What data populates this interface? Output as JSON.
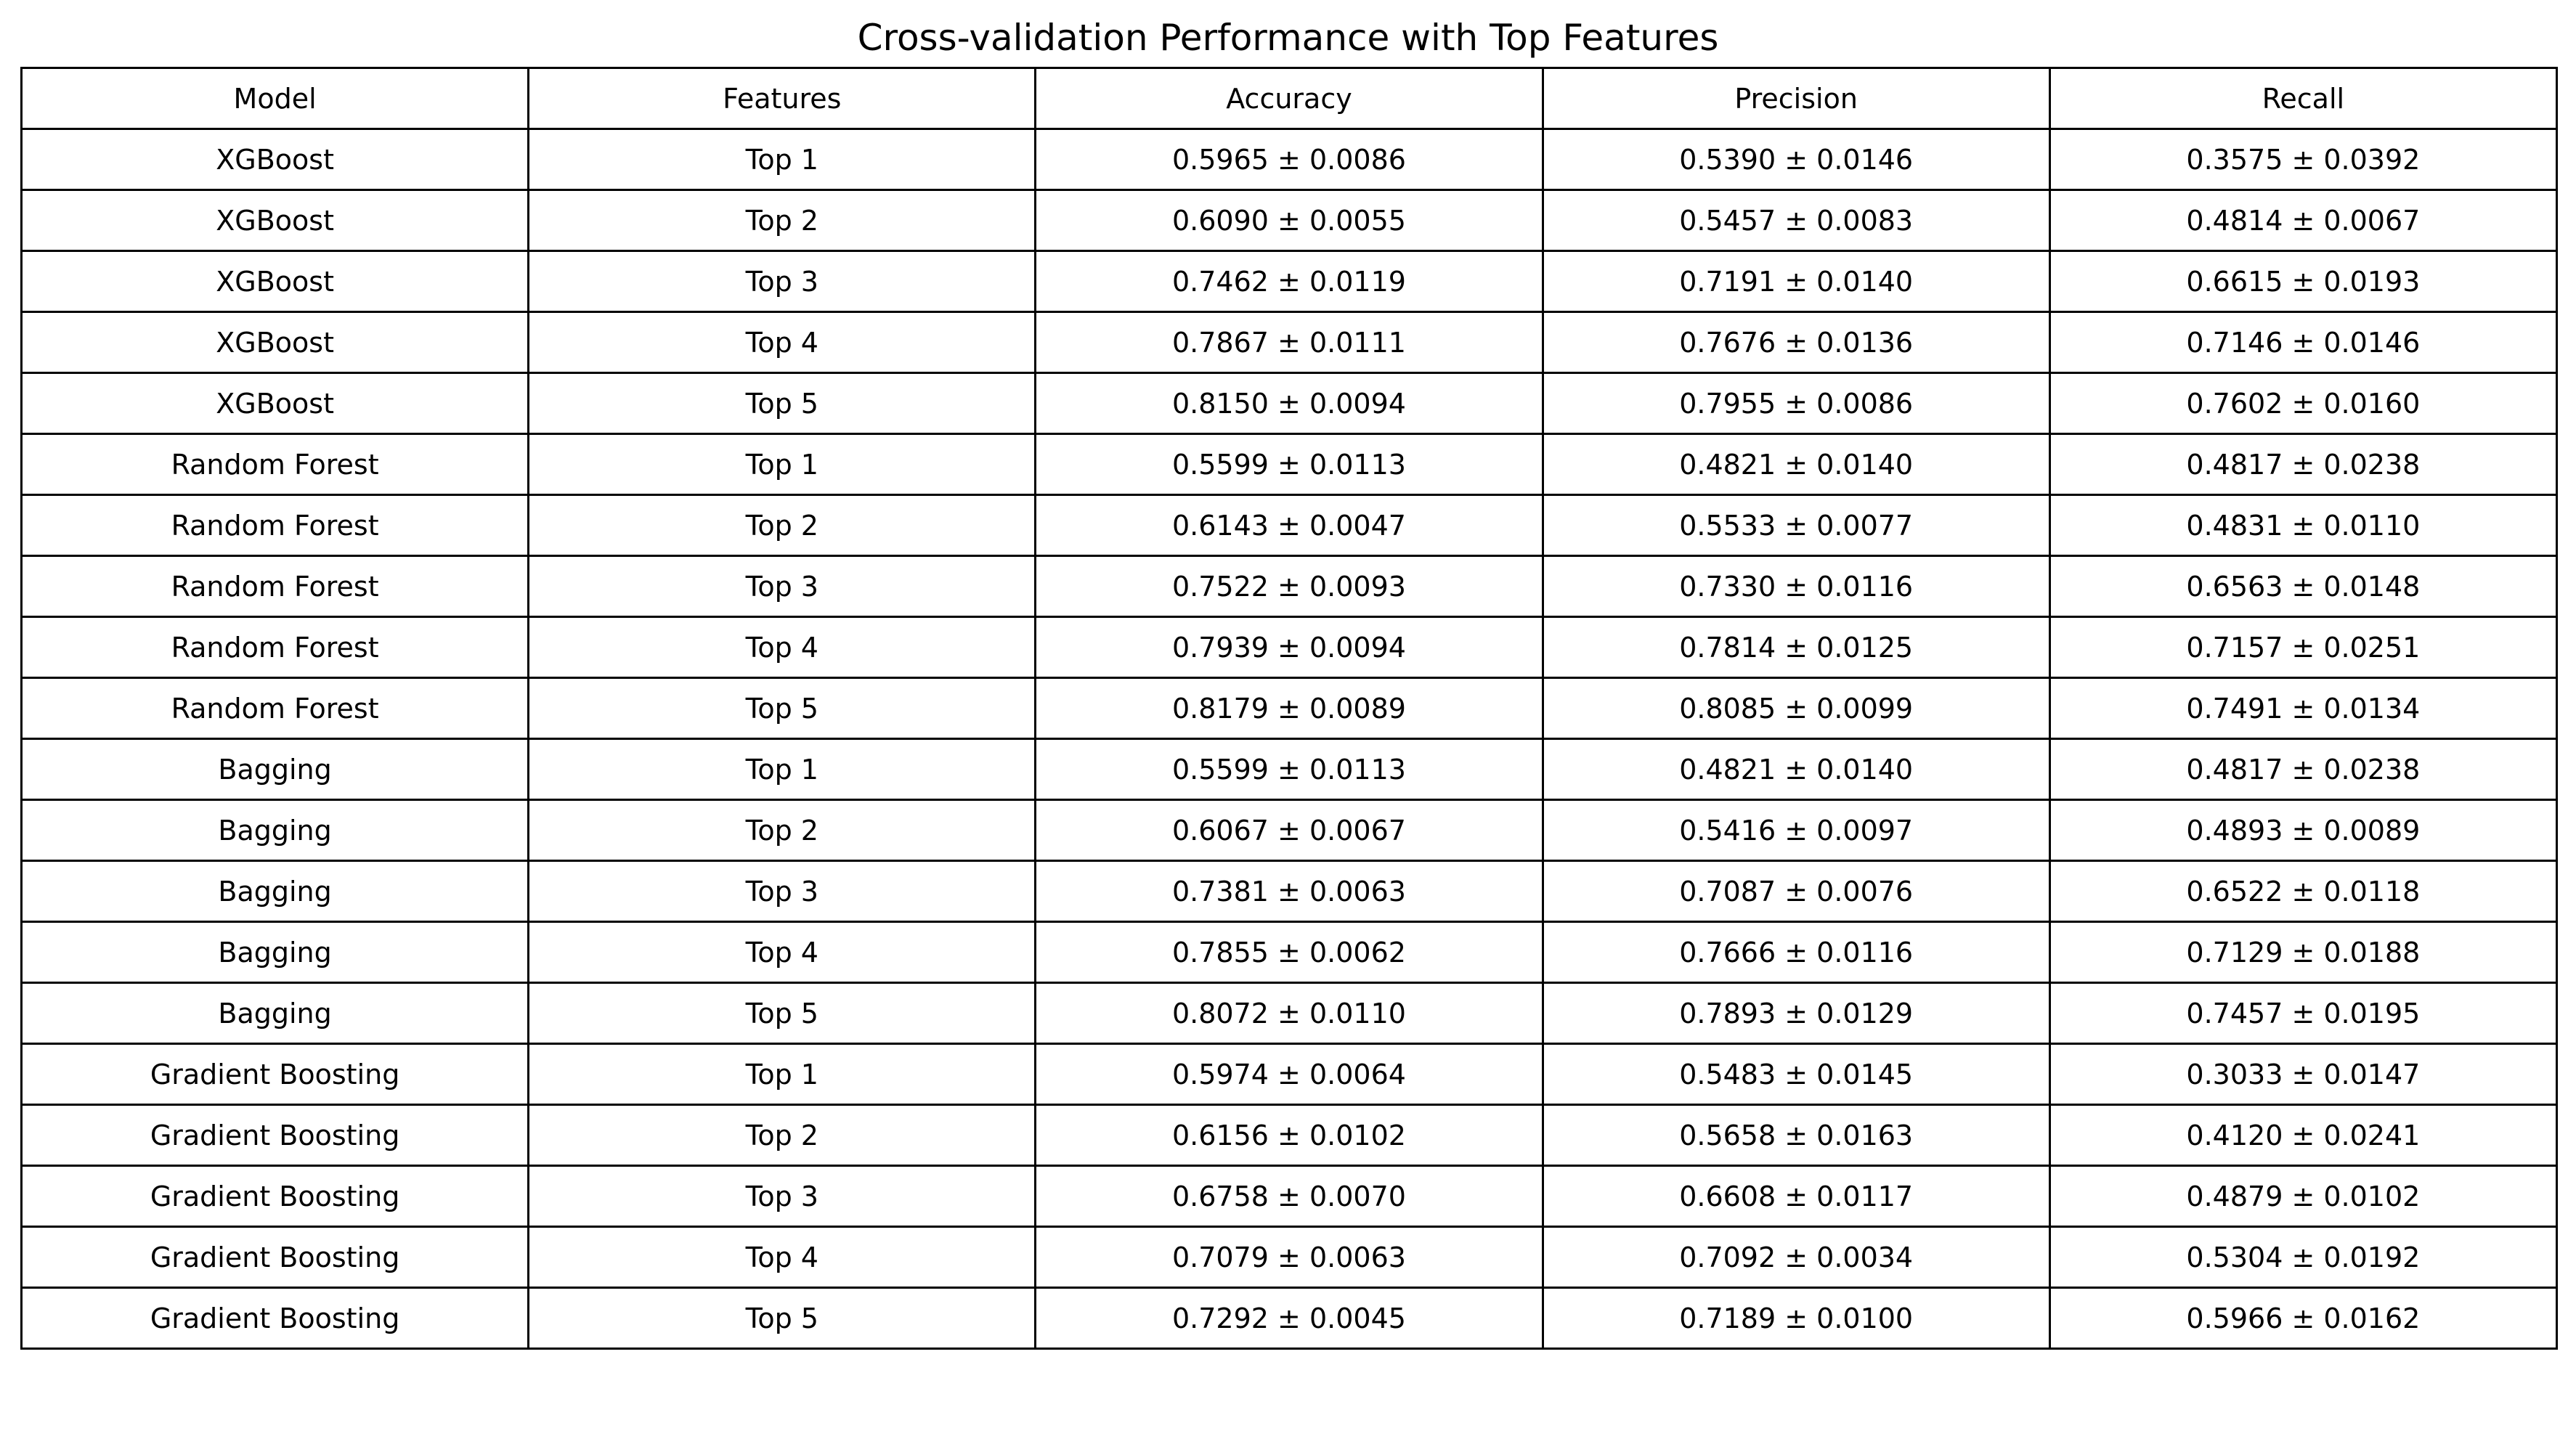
{
  "chart_data": {
    "type": "table",
    "title": "Cross-validation Performance with Top Features",
    "columns": [
      "Model",
      "Features",
      "Accuracy",
      "Precision",
      "Recall"
    ],
    "rows": [
      [
        "XGBoost",
        "Top 1",
        "0.5965 ± 0.0086",
        "0.5390 ± 0.0146",
        "0.3575 ± 0.0392"
      ],
      [
        "XGBoost",
        "Top 2",
        "0.6090 ± 0.0055",
        "0.5457 ± 0.0083",
        "0.4814 ± 0.0067"
      ],
      [
        "XGBoost",
        "Top 3",
        "0.7462 ± 0.0119",
        "0.7191 ± 0.0140",
        "0.6615 ± 0.0193"
      ],
      [
        "XGBoost",
        "Top 4",
        "0.7867 ± 0.0111",
        "0.7676 ± 0.0136",
        "0.7146 ± 0.0146"
      ],
      [
        "XGBoost",
        "Top 5",
        "0.8150 ± 0.0094",
        "0.7955 ± 0.0086",
        "0.7602 ± 0.0160"
      ],
      [
        "Random Forest",
        "Top 1",
        "0.5599 ± 0.0113",
        "0.4821 ± 0.0140",
        "0.4817 ± 0.0238"
      ],
      [
        "Random Forest",
        "Top 2",
        "0.6143 ± 0.0047",
        "0.5533 ± 0.0077",
        "0.4831 ± 0.0110"
      ],
      [
        "Random Forest",
        "Top 3",
        "0.7522 ± 0.0093",
        "0.7330 ± 0.0116",
        "0.6563 ± 0.0148"
      ],
      [
        "Random Forest",
        "Top 4",
        "0.7939 ± 0.0094",
        "0.7814 ± 0.0125",
        "0.7157 ± 0.0251"
      ],
      [
        "Random Forest",
        "Top 5",
        "0.8179 ± 0.0089",
        "0.8085 ± 0.0099",
        "0.7491 ± 0.0134"
      ],
      [
        "Bagging",
        "Top 1",
        "0.5599 ± 0.0113",
        "0.4821 ± 0.0140",
        "0.4817 ± 0.0238"
      ],
      [
        "Bagging",
        "Top 2",
        "0.6067 ± 0.0067",
        "0.5416 ± 0.0097",
        "0.4893 ± 0.0089"
      ],
      [
        "Bagging",
        "Top 3",
        "0.7381 ± 0.0063",
        "0.7087 ± 0.0076",
        "0.6522 ± 0.0118"
      ],
      [
        "Bagging",
        "Top 4",
        "0.7855 ± 0.0062",
        "0.7666 ± 0.0116",
        "0.7129 ± 0.0188"
      ],
      [
        "Bagging",
        "Top 5",
        "0.8072 ± 0.0110",
        "0.7893 ± 0.0129",
        "0.7457 ± 0.0195"
      ],
      [
        "Gradient Boosting",
        "Top 1",
        "0.5974 ± 0.0064",
        "0.5483 ± 0.0145",
        "0.3033 ± 0.0147"
      ],
      [
        "Gradient Boosting",
        "Top 2",
        "0.6156 ± 0.0102",
        "0.5658 ± 0.0163",
        "0.4120 ± 0.0241"
      ],
      [
        "Gradient Boosting",
        "Top 3",
        "0.6758 ± 0.0070",
        "0.6608 ± 0.0117",
        "0.4879 ± 0.0102"
      ],
      [
        "Gradient Boosting",
        "Top 4",
        "0.7079 ± 0.0063",
        "0.7092 ± 0.0034",
        "0.5304 ± 0.0192"
      ],
      [
        "Gradient Boosting",
        "Top 5",
        "0.7292 ± 0.0045",
        "0.7189 ± 0.0100",
        "0.5966 ± 0.0162"
      ]
    ]
  },
  "colors": {
    "background": "#ffffff",
    "text": "#000000",
    "grid": "#000000"
  }
}
